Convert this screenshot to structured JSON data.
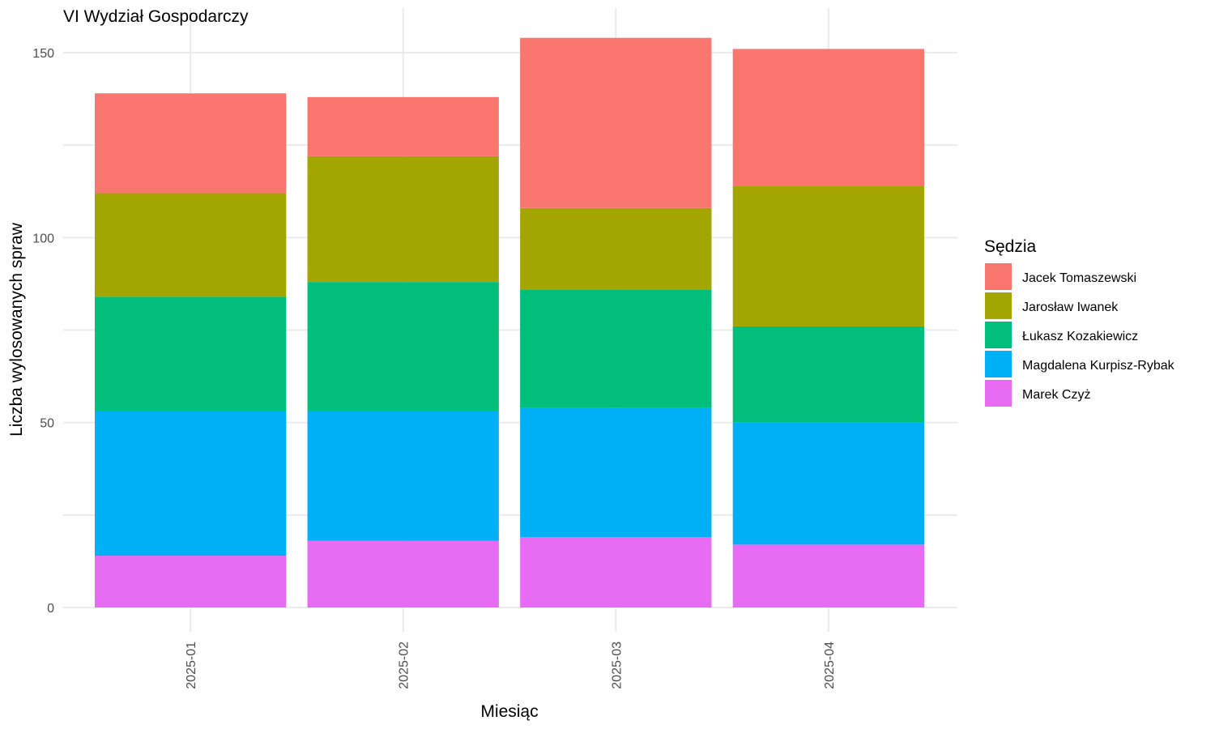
{
  "chart_data": {
    "type": "bar",
    "stacked": true,
    "title": "VI Wydział Gospodarczy",
    "xlabel": "Miesiąc",
    "ylabel": "Liczba wylosowanych spraw",
    "ylim": [
      0,
      160
    ],
    "yticks": [
      0,
      50,
      100,
      150
    ],
    "grid": true,
    "legend": {
      "title": "Sędzia",
      "position": "right"
    },
    "categories": [
      "2025-01",
      "2025-02",
      "2025-03",
      "2025-04"
    ],
    "series": [
      {
        "name": "Jacek Tomaszewski",
        "color": "#F8766D",
        "values": [
          27,
          16,
          46,
          37
        ]
      },
      {
        "name": "Jarosław Iwanek",
        "color": "#A3A500",
        "values": [
          28,
          34,
          22,
          38
        ]
      },
      {
        "name": "Łukasz Kozakiewicz",
        "color": "#00BF7D",
        "values": [
          31,
          35,
          32,
          26
        ]
      },
      {
        "name": "Magdalena Kurpisz-Rybak",
        "color": "#00B0F6",
        "values": [
          39,
          35,
          35,
          33
        ]
      },
      {
        "name": "Marek Czyż",
        "color": "#E76BF3",
        "values": [
          14,
          18,
          19,
          17
        ]
      }
    ]
  }
}
